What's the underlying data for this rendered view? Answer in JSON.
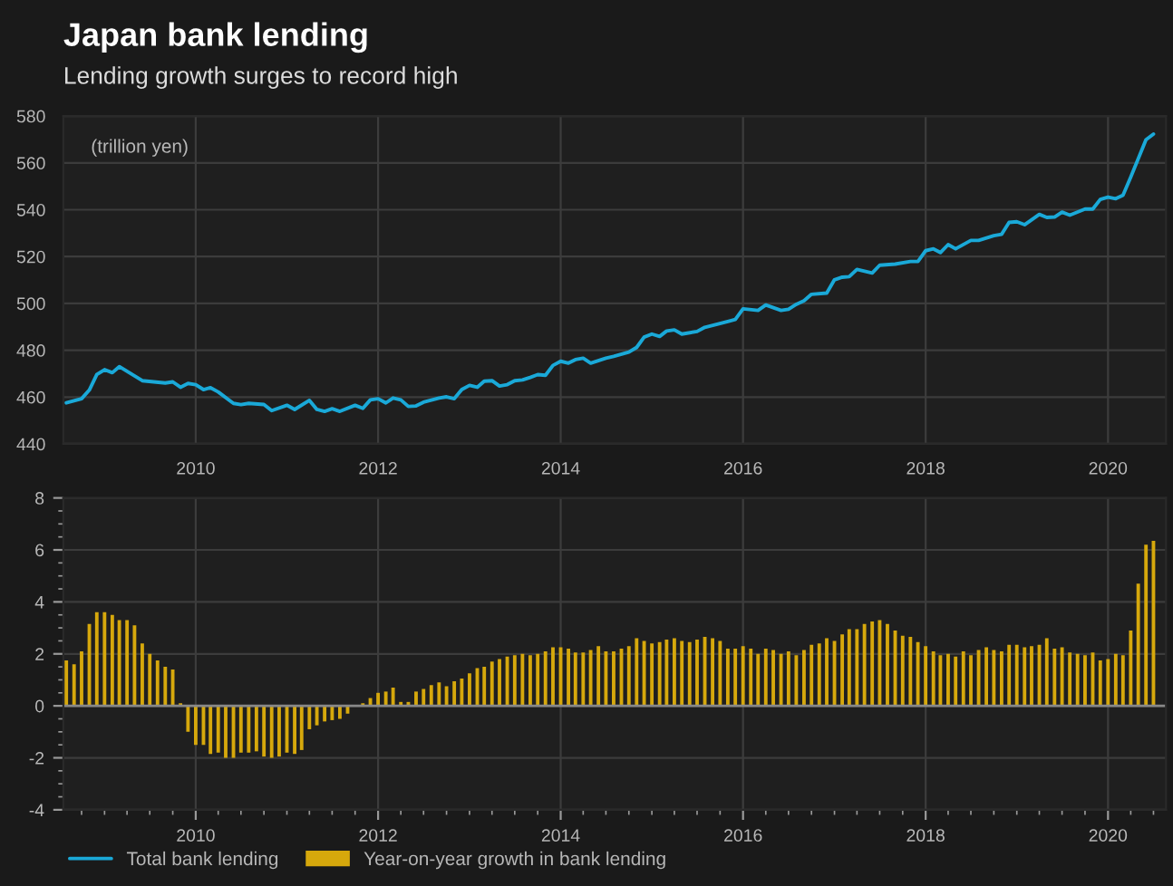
{
  "chart_data": [
    {
      "type": "line",
      "title": "Japan bank lending",
      "subtitle": "Lending growth surges to record high",
      "annotations": [
        "(trillion yen)"
      ],
      "xlim": [
        "2008-07-20",
        "2020-08-20"
      ],
      "xticks": [
        "2010",
        "2012",
        "2014",
        "2016",
        "2018",
        "2020"
      ],
      "ylim": [
        440,
        580
      ],
      "yticks": [
        440,
        460,
        480,
        500,
        520,
        540,
        560,
        580
      ],
      "grid": true,
      "legend": "bottom",
      "series": [
        {
          "name": "Total bank lending",
          "color": "#1aa9d8",
          "x": [
            "2008-08",
            "2008-10",
            "2008-11",
            "2008-12",
            "2009-01",
            "2009-02",
            "2009-03",
            "2009-06",
            "2009-09",
            "2009-10",
            "2009-11",
            "2009-12",
            "2010-01",
            "2010-02",
            "2010-03",
            "2010-04",
            "2010-06",
            "2010-07",
            "2010-08",
            "2010-10",
            "2010-11",
            "2011-01",
            "2011-02",
            "2011-04",
            "2011-05",
            "2011-06",
            "2011-07",
            "2011-08",
            "2011-10",
            "2011-11",
            "2011-12",
            "2012-01",
            "2012-02",
            "2012-03",
            "2012-04",
            "2012-05",
            "2012-06",
            "2012-07",
            "2012-09",
            "2012-10",
            "2012-11",
            "2012-12",
            "2013-01",
            "2013-02",
            "2013-03",
            "2013-04",
            "2013-05",
            "2013-06",
            "2013-07",
            "2013-08",
            "2013-09",
            "2013-10",
            "2013-11",
            "2013-12",
            "2014-01",
            "2014-02",
            "2014-03",
            "2014-04",
            "2014-05",
            "2014-07",
            "2014-08",
            "2014-10",
            "2014-11",
            "2014-12",
            "2015-01",
            "2015-02",
            "2015-03",
            "2015-04",
            "2015-05",
            "2015-07",
            "2015-08",
            "2015-11",
            "2015-12",
            "2016-01",
            "2016-03",
            "2016-04",
            "2016-06",
            "2016-07",
            "2016-08",
            "2016-09",
            "2016-10",
            "2016-12",
            "2017-01",
            "2017-02",
            "2017-03",
            "2017-04",
            "2017-06",
            "2017-07",
            "2017-09",
            "2017-11",
            "2017-12",
            "2018-01",
            "2018-02",
            "2018-03",
            "2018-04",
            "2018-05",
            "2018-07",
            "2018-08",
            "2018-10",
            "2018-11",
            "2018-12",
            "2019-01",
            "2019-02",
            "2019-04",
            "2019-05",
            "2019-06",
            "2019-07",
            "2019-08",
            "2019-10",
            "2019-11",
            "2019-12",
            "2020-01",
            "2020-02",
            "2020-03",
            "2020-04",
            "2020-06",
            "2020-07"
          ],
          "values": [
            457.5,
            459.3,
            463,
            469.6,
            471.7,
            470.4,
            473,
            467,
            466,
            466.5,
            464.2,
            465.8,
            465.3,
            463.2,
            464,
            462.2,
            457.3,
            456.8,
            457.3,
            456.8,
            454.2,
            456.5,
            454.7,
            458.6,
            454.7,
            453.9,
            455,
            453.9,
            456.5,
            455.2,
            458.8,
            459.3,
            457.5,
            459.6,
            458.8,
            456,
            456.2,
            457.8,
            459.6,
            460.1,
            459.3,
            463.2,
            465,
            464.2,
            466.8,
            467,
            464.7,
            465.3,
            467,
            467.3,
            468.4,
            469.6,
            469.3,
            473.5,
            475.3,
            474.5,
            476,
            476.6,
            474.5,
            476.6,
            477.4,
            479.2,
            481.2,
            485.6,
            486.9,
            485.9,
            488.2,
            488.7,
            486.9,
            488,
            489.8,
            492.3,
            493.1,
            497.7,
            497,
            499.3,
            497,
            497.5,
            499.6,
            501.1,
            503.9,
            504.4,
            510.1,
            511.2,
            511.4,
            514.5,
            513,
            516.3,
            516.8,
            517.9,
            517.9,
            522.5,
            523.3,
            521.7,
            525.1,
            523.3,
            526.9,
            526.9,
            528.9,
            529.5,
            534.6,
            534.9,
            533.6,
            538,
            536.7,
            536.9,
            539,
            537.7,
            540.3,
            540.3,
            544.4,
            545.4,
            544.7,
            546.2,
            553.9,
            569.9,
            572.3
          ]
        }
      ]
    },
    {
      "type": "bar",
      "xlim": [
        "2008-07-20",
        "2020-08-20"
      ],
      "xticks": [
        "2010",
        "2012",
        "2014",
        "2016",
        "2018",
        "2020"
      ],
      "ylim": [
        -4,
        8
      ],
      "yticks": [
        -4,
        -2,
        0,
        2,
        4,
        6,
        8
      ],
      "grid": true,
      "legend": "bottom",
      "series": [
        {
          "name": "Year-on-year growth in bank lending",
          "color": "#d6a80c",
          "x": [
            "2008-08",
            "2008-09",
            "2008-10",
            "2008-11",
            "2008-12",
            "2009-01",
            "2009-02",
            "2009-03",
            "2009-04",
            "2009-05",
            "2009-06",
            "2009-07",
            "2009-08",
            "2009-09",
            "2009-10",
            "2009-11",
            "2009-12",
            "2010-01",
            "2010-02",
            "2010-03",
            "2010-04",
            "2010-05",
            "2010-06",
            "2010-07",
            "2010-08",
            "2010-09",
            "2010-10",
            "2010-11",
            "2010-12",
            "2011-01",
            "2011-02",
            "2011-03",
            "2011-04",
            "2011-05",
            "2011-06",
            "2011-07",
            "2011-08",
            "2011-09",
            "2011-10",
            "2011-11",
            "2011-12",
            "2012-01",
            "2012-02",
            "2012-03",
            "2012-04",
            "2012-05",
            "2012-06",
            "2012-07",
            "2012-08",
            "2012-09",
            "2012-10",
            "2012-11",
            "2012-12",
            "2013-01",
            "2013-02",
            "2013-03",
            "2013-04",
            "2013-05",
            "2013-06",
            "2013-07",
            "2013-08",
            "2013-09",
            "2013-10",
            "2013-11",
            "2013-12",
            "2014-01",
            "2014-02",
            "2014-03",
            "2014-04",
            "2014-05",
            "2014-06",
            "2014-07",
            "2014-08",
            "2014-09",
            "2014-10",
            "2014-11",
            "2014-12",
            "2015-01",
            "2015-02",
            "2015-03",
            "2015-04",
            "2015-05",
            "2015-06",
            "2015-07",
            "2015-08",
            "2015-09",
            "2015-10",
            "2015-11",
            "2015-12",
            "2016-01",
            "2016-02",
            "2016-03",
            "2016-04",
            "2016-05",
            "2016-06",
            "2016-07",
            "2016-08",
            "2016-09",
            "2016-10",
            "2016-11",
            "2016-12",
            "2017-01",
            "2017-02",
            "2017-03",
            "2017-04",
            "2017-05",
            "2017-06",
            "2017-07",
            "2017-08",
            "2017-09",
            "2017-10",
            "2017-11",
            "2017-12",
            "2018-01",
            "2018-02",
            "2018-03",
            "2018-04",
            "2018-05",
            "2018-06",
            "2018-07",
            "2018-08",
            "2018-09",
            "2018-10",
            "2018-11",
            "2018-12",
            "2019-01",
            "2019-02",
            "2019-03",
            "2019-04",
            "2019-05",
            "2019-06",
            "2019-07",
            "2019-08",
            "2019-09",
            "2019-10",
            "2019-11",
            "2019-12",
            "2020-01",
            "2020-02",
            "2020-03",
            "2020-04",
            "2020-05",
            "2020-06",
            "2020-07"
          ],
          "values": [
            1.75,
            1.6,
            2.1,
            3.15,
            3.6,
            3.6,
            3.5,
            3.3,
            3.3,
            3.1,
            2.4,
            2.0,
            1.75,
            1.5,
            1.4,
            0.1,
            -1.0,
            -1.5,
            -1.5,
            -1.85,
            -1.8,
            -2.0,
            -2.0,
            -1.8,
            -1.8,
            -1.75,
            -1.95,
            -2.0,
            -1.95,
            -1.8,
            -1.85,
            -1.7,
            -0.9,
            -0.75,
            -0.6,
            -0.55,
            -0.5,
            -0.3,
            0.0,
            0.1,
            0.3,
            0.5,
            0.55,
            0.7,
            0.15,
            0.15,
            0.55,
            0.65,
            0.8,
            0.9,
            0.75,
            0.95,
            1.05,
            1.25,
            1.45,
            1.5,
            1.7,
            1.8,
            1.9,
            1.95,
            2.0,
            1.95,
            2.0,
            2.1,
            2.25,
            2.25,
            2.2,
            2.05,
            2.05,
            2.15,
            2.3,
            2.1,
            2.1,
            2.2,
            2.3,
            2.6,
            2.5,
            2.4,
            2.45,
            2.55,
            2.6,
            2.5,
            2.45,
            2.55,
            2.65,
            2.6,
            2.5,
            2.2,
            2.2,
            2.3,
            2.2,
            2.0,
            2.2,
            2.15,
            2.0,
            2.1,
            1.95,
            2.15,
            2.35,
            2.4,
            2.6,
            2.5,
            2.75,
            2.95,
            2.95,
            3.15,
            3.25,
            3.3,
            3.15,
            2.9,
            2.7,
            2.65,
            2.45,
            2.3,
            2.1,
            1.95,
            2.0,
            1.9,
            2.1,
            1.95,
            2.15,
            2.25,
            2.15,
            2.1,
            2.35,
            2.35,
            2.25,
            2.3,
            2.35,
            2.6,
            2.2,
            2.25,
            2.05,
            2.0,
            1.95,
            2.05,
            1.75,
            1.8,
            2.0,
            1.95,
            2.9,
            4.7,
            6.2,
            6.35
          ]
        }
      ]
    }
  ]
}
